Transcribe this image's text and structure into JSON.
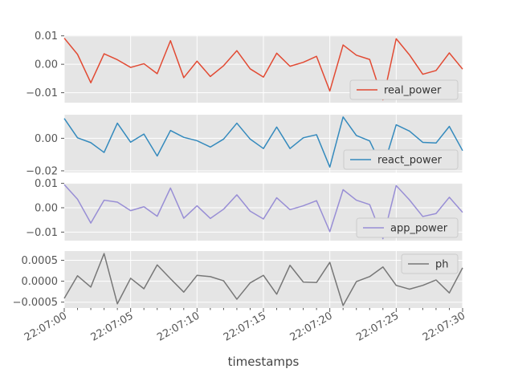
{
  "chart_data": [
    {
      "type": "line",
      "xlabel": "timestamps",
      "ylim": [
        -0.0135,
        0.0102
      ],
      "yticks": [
        0.01,
        0.0,
        -0.01
      ],
      "ytick_labels": [
        "0.01",
        "0.00",
        "−0.01"
      ],
      "legend_position": "lower-right",
      "series": [
        {
          "name": "real_power",
          "color": "#E24A33",
          "values": [
            0.0092,
            0.0035,
            -0.0065,
            0.0037,
            0.0016,
            -0.0011,
            0.0002,
            -0.0033,
            0.0083,
            -0.0047,
            0.0011,
            -0.0043,
            -0.0005,
            0.0048,
            -0.0016,
            -0.0045,
            0.0039,
            -0.0007,
            0.0007,
            0.0028,
            -0.0094,
            0.0068,
            0.0032,
            0.0017,
            -0.0125,
            0.009,
            0.0033,
            -0.0035,
            -0.0022,
            0.004,
            -0.0017
          ]
        }
      ]
    },
    {
      "type": "line",
      "xlabel": "timestamps",
      "ylim": [
        -0.021,
        0.0145
      ],
      "yticks": [
        0.0,
        -0.02
      ],
      "ytick_labels": [
        "0.00",
        "−0.02"
      ],
      "legend_position": "lower-right",
      "series": [
        {
          "name": "react_power",
          "color": "#348ABD",
          "values": [
            0.0122,
            0.0003,
            -0.0027,
            -0.0087,
            0.0093,
            -0.0024,
            0.0026,
            -0.0109,
            0.0048,
            0.0006,
            -0.0015,
            -0.0054,
            -0.0005,
            0.0093,
            -0.0005,
            -0.0063,
            0.0069,
            -0.0063,
            0.0003,
            0.0022,
            -0.0177,
            0.0131,
            0.0017,
            -0.0016,
            -0.0186,
            0.0083,
            0.0044,
            -0.0025,
            -0.0029,
            0.0073,
            -0.0076
          ]
        }
      ]
    },
    {
      "type": "line",
      "xlabel": "timestamps",
      "ylim": [
        -0.0135,
        0.0102
      ],
      "yticks": [
        0.01,
        0.0,
        -0.01
      ],
      "ytick_labels": [
        "0.01",
        "0.00",
        "−0.01"
      ],
      "legend_position": "lower-right",
      "series": [
        {
          "name": "app_power",
          "color": "#988ED5",
          "values": [
            0.0095,
            0.0035,
            -0.0063,
            0.0031,
            0.0023,
            -0.0012,
            0.0004,
            -0.0035,
            0.0081,
            -0.0043,
            0.0008,
            -0.0044,
            -0.0006,
            0.0053,
            -0.0014,
            -0.0046,
            0.0041,
            -0.0008,
            0.0008,
            0.0029,
            -0.0098,
            0.0074,
            0.0031,
            0.0013,
            -0.0127,
            0.0091,
            0.0032,
            -0.0036,
            -0.0024,
            0.0043,
            -0.0019
          ]
        }
      ]
    },
    {
      "type": "line",
      "xlabel": "timestamps",
      "ylim": [
        -0.00064,
        0.00072
      ],
      "yticks": [
        0.0005,
        0.0,
        -0.0005
      ],
      "ytick_labels": [
        "0.0005",
        "0.0000",
        "−0.0005"
      ],
      "legend_position": "top-right",
      "series": [
        {
          "name": "ph",
          "color": "#777777",
          "values": [
            -0.00041,
            0.00013,
            -0.00014,
            0.00066,
            -0.00054,
            7e-05,
            -0.00018,
            0.00039,
            6e-05,
            -0.00026,
            0.00014,
            0.00011,
            1e-05,
            -0.00043,
            -4e-05,
            0.00014,
            -0.00031,
            0.00038,
            -2e-05,
            -3e-05,
            0.00045,
            -0.00058,
            -1e-05,
            0.00011,
            0.00034,
            -0.0001,
            -0.00019,
            -0.0001,
            3e-05,
            -0.00028,
            0.00032
          ]
        }
      ]
    }
  ],
  "x_axis": {
    "start": "22:07:00",
    "end": "22:07:30",
    "step_seconds": 1,
    "tick_labels": [
      "22:07:00",
      "22:07:05",
      "22:07:10",
      "22:07:15",
      "22:07:20",
      "22:07:25",
      "22:07:30"
    ],
    "grid": true
  },
  "style": {
    "axes_background": "#E5E5E5",
    "grid_color": "#FFFFFF",
    "tick_color": "#555555",
    "legend_background": "#E5E5E5",
    "legend_border": "#CCCCCC"
  }
}
